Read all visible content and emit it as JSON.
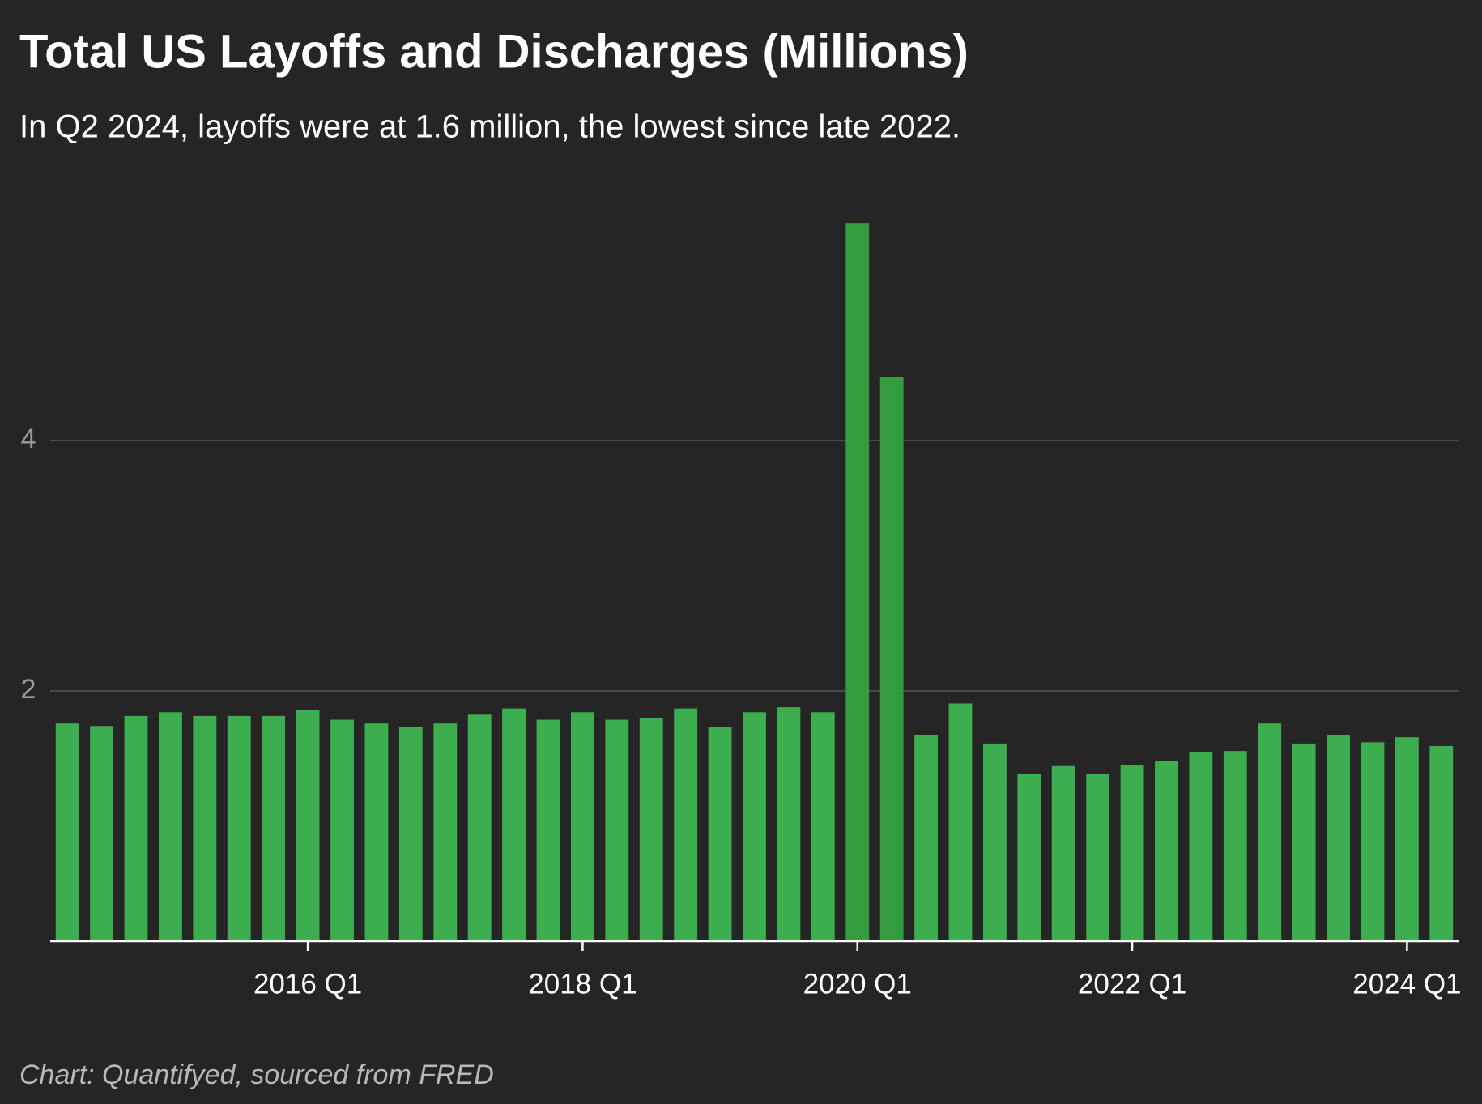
{
  "chart_data": {
    "type": "bar",
    "title": "Total US Layoffs and Discharges (Millions)",
    "subtitle": "In Q2 2024, layoffs were at 1.6 million, the lowest since late 2022.",
    "source": "Chart: Quantifyed, sourced from FRED",
    "categories": [
      null,
      null,
      null,
      null,
      null,
      null,
      null,
      "2016 Q1",
      null,
      null,
      null,
      null,
      null,
      null,
      null,
      "2018 Q1",
      null,
      null,
      null,
      null,
      null,
      null,
      null,
      "2020 Q1",
      null,
      null,
      null,
      null,
      null,
      null,
      null,
      "2022 Q1",
      null,
      null,
      null,
      null,
      null,
      null,
      null,
      "2024 Q1",
      null
    ],
    "values": [
      1.74,
      1.72,
      1.8,
      1.83,
      1.8,
      1.8,
      1.8,
      1.85,
      1.77,
      1.74,
      1.71,
      1.74,
      1.81,
      1.86,
      1.77,
      1.83,
      1.77,
      1.78,
      1.86,
      1.71,
      1.83,
      1.87,
      1.83,
      5.74,
      4.51,
      1.65,
      1.9,
      1.58,
      1.34,
      1.4,
      1.34,
      1.41,
      1.44,
      1.51,
      1.52,
      1.74,
      1.58,
      1.65,
      1.59,
      1.63,
      1.56
    ],
    "colors": [
      "#3dae50",
      "#3dae50",
      "#3dae50",
      "#3dae50",
      "#3dae50",
      "#3dae50",
      "#3dae50",
      "#3dae50",
      "#3dae50",
      "#3dae50",
      "#3dae50",
      "#3dae50",
      "#3dae50",
      "#3dae50",
      "#3dae50",
      "#3dae50",
      "#3dae50",
      "#3dae50",
      "#3dae50",
      "#3dae50",
      "#3dae50",
      "#3dae50",
      "#3dae50",
      "#349b3f",
      "#349b3f",
      "#3dae50",
      "#3dae50",
      "#3dae50",
      "#3dae50",
      "#3dae50",
      "#3dae50",
      "#3dae50",
      "#3dae50",
      "#3dae50",
      "#3dae50",
      "#3dae50",
      "#3dae50",
      "#3dae50",
      "#3dae50",
      "#3dae50",
      "#3dae50"
    ],
    "ylim": [
      0,
      6
    ],
    "yticks": [
      2,
      4
    ],
    "grid": true
  }
}
